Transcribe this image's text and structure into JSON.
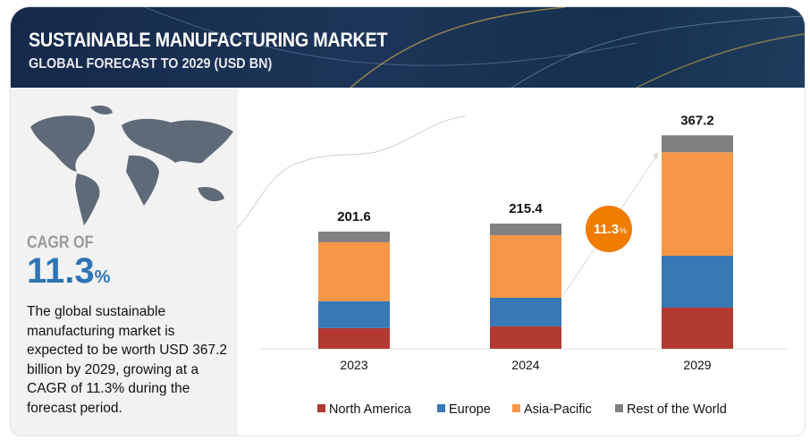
{
  "header": {
    "title": "SUSTAINABLE MANUFACTURING MARKET",
    "subtitle": "GLOBAL FORECAST TO 2029 (USD BN)"
  },
  "left_panel": {
    "cagr_label": "CAGR OF",
    "cagr_value": "11.3",
    "cagr_unit": "%",
    "description": "The global sustainable manufacturing  market is expected to be worth USD 367.2 billion by 2029, growing at a CAGR of 11.3% during the forecast period."
  },
  "chart_data": {
    "type": "bar",
    "stacked": true,
    "title": "Sustainable Manufacturing Market, Global Forecast to 2029 (USD BN)",
    "categories": [
      "2023",
      "2024",
      "2029"
    ],
    "totals": [
      "201.6",
      "215.4",
      "367.2"
    ],
    "series": [
      {
        "name": "North America",
        "color": "#b33a32",
        "values": [
          35.6,
          38.5,
          70.8
        ]
      },
      {
        "name": "Europe",
        "color": "#3778b5",
        "values": [
          46.2,
          49.2,
          89.2
        ]
      },
      {
        "name": "Asia-Pacific",
        "color": "#f79646",
        "values": [
          101.5,
          107.7,
          178.0
        ]
      },
      {
        "name": "Rest of the World",
        "color": "#808080",
        "values": [
          18.3,
          20.0,
          29.2
        ]
      }
    ],
    "cagr_badge": {
      "value": "11.3",
      "unit": "%",
      "color": "#f07c00"
    },
    "ylim": [
      0,
      380
    ],
    "legend": "bottom",
    "grid": false
  }
}
